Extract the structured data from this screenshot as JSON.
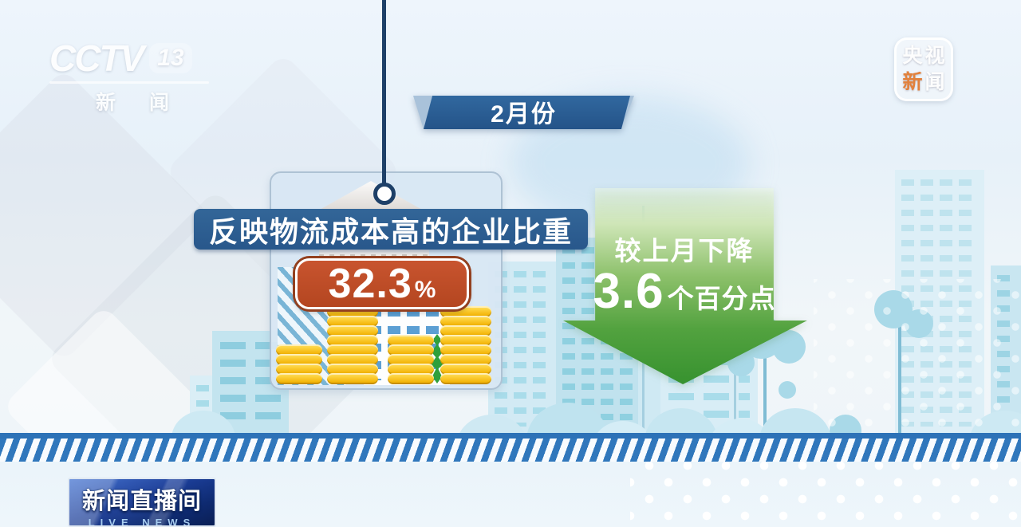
{
  "watermark": {
    "channel": "CCTV",
    "channel_number": "13",
    "channel_name": "新闻"
  },
  "brand_badge": {
    "char1": "央",
    "char2": "视",
    "char3": "新",
    "char4": "闻"
  },
  "month_banner": {
    "label": "2月份"
  },
  "info_card": {
    "title": "反映物流成本高的企业比重",
    "value": "32.3",
    "unit": "%",
    "coin_stacks": [
      4,
      8,
      5,
      8
    ]
  },
  "change_arrow": {
    "caption": "较上月下降",
    "value": "3.6",
    "unit_text": "个百分点",
    "direction": "down"
  },
  "program_badge": {
    "title": "新闻直播间",
    "subtitle": "LIVE NEWS"
  },
  "colors": {
    "banner_blue": "#2a5f95",
    "title_bar_blue": "#2d5f94",
    "value_badge_red": "#c0512b",
    "arrow_green": "#37922f",
    "coin_gold": "#f6c31c",
    "ribbon_stripe_blue": "#3077bc",
    "program_badge_navy": "#15348c",
    "sky_light_blue": "#cfe9f3",
    "connector_navy": "#1e4068"
  }
}
